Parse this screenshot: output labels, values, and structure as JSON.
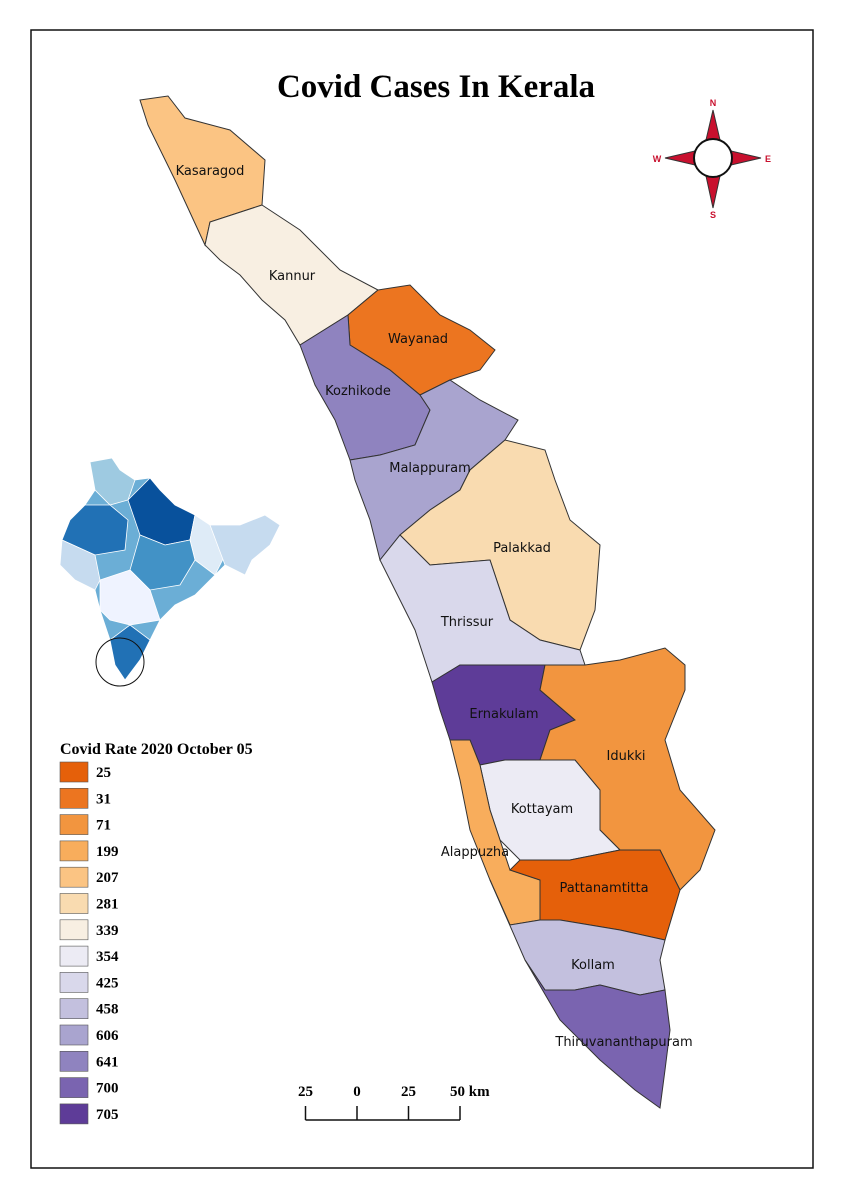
{
  "title": "Covid Cases In Kerala",
  "legend": {
    "title": "Covid Rate 2020 October 05",
    "items": [
      {
        "value": 25,
        "color": "#e5600a"
      },
      {
        "value": 31,
        "color": "#ec7520"
      },
      {
        "value": 71,
        "color": "#f2953f"
      },
      {
        "value": 199,
        "color": "#f8ad5c"
      },
      {
        "value": 207,
        "color": "#fbc483"
      },
      {
        "value": 281,
        "color": "#f9dbb0"
      },
      {
        "value": 339,
        "color": "#f8efe2"
      },
      {
        "value": 354,
        "color": "#ecebf4"
      },
      {
        "value": 425,
        "color": "#d9d8eb"
      },
      {
        "value": 458,
        "color": "#c3c0de"
      },
      {
        "value": 606,
        "color": "#a9a4cf"
      },
      {
        "value": 641,
        "color": "#8f83bf"
      },
      {
        "value": 700,
        "color": "#7a64b0"
      },
      {
        "value": 705,
        "color": "#5e3c98"
      }
    ]
  },
  "districts": [
    {
      "name": "Kasaragod",
      "rate": 207
    },
    {
      "name": "Kannur",
      "rate": 339
    },
    {
      "name": "Wayanad",
      "rate": 31
    },
    {
      "name": "Kozhikode",
      "rate": 641
    },
    {
      "name": "Malappuram",
      "rate": 606
    },
    {
      "name": "Palakkad",
      "rate": 281
    },
    {
      "name": "Thrissur",
      "rate": 425
    },
    {
      "name": "Ernakulam",
      "rate": 705
    },
    {
      "name": "Idukki",
      "rate": 71
    },
    {
      "name": "Kottayam",
      "rate": 354
    },
    {
      "name": "Alappuzha",
      "rate": 199
    },
    {
      "name": "Pattanamtitta",
      "rate": 25
    },
    {
      "name": "Kollam",
      "rate": 458
    },
    {
      "name": "Thiruvananthapuram",
      "rate": 700
    }
  ],
  "compass": {
    "n": "N",
    "e": "E",
    "s": "S",
    "w": "W"
  },
  "scale_bar": {
    "ticks": [
      {
        "value": -25,
        "label": "25"
      },
      0,
      25,
      {
        "value": 50,
        "label": "50 km"
      }
    ]
  }
}
